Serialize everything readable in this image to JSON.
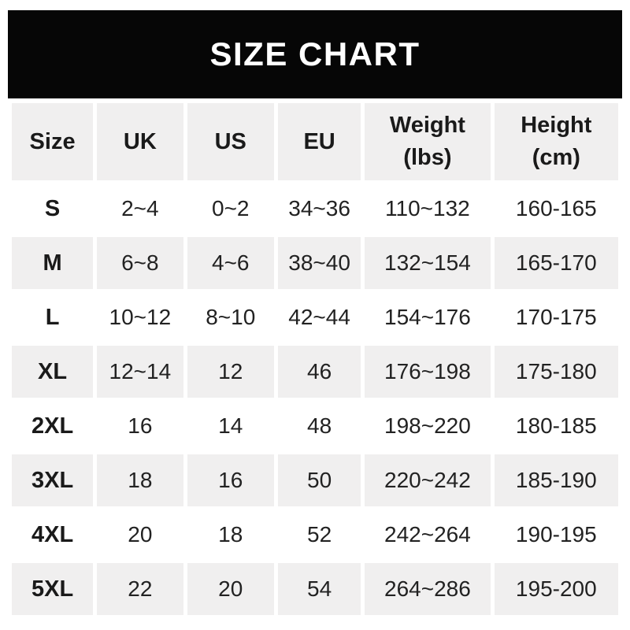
{
  "banner": {
    "title": "SIZE CHART"
  },
  "table": {
    "headers": [
      {
        "lines": [
          "Size"
        ]
      },
      {
        "lines": [
          "UK"
        ]
      },
      {
        "lines": [
          "US"
        ]
      },
      {
        "lines": [
          "EU"
        ]
      },
      {
        "lines": [
          "Weight",
          "(lbs)"
        ]
      },
      {
        "lines": [
          "Height",
          "(cm)"
        ]
      }
    ]
  },
  "colors": {
    "banner_bg": "#060606",
    "banner_fg": "#ffffff",
    "stripe": "#f0efef",
    "head_text": "#1a1a1a",
    "body_text": "#222222"
  },
  "chart_data": {
    "type": "table",
    "title": "SIZE CHART",
    "columns": [
      "Size",
      "UK",
      "US",
      "EU",
      "Weight (lbs)",
      "Height (cm)"
    ],
    "rows": [
      [
        "S",
        "2~4",
        "0~2",
        "34~36",
        "110~132",
        "160-165"
      ],
      [
        "M",
        "6~8",
        "4~6",
        "38~40",
        "132~154",
        "165-170"
      ],
      [
        "L",
        "10~12",
        "8~10",
        "42~44",
        "154~176",
        "170-175"
      ],
      [
        "XL",
        "12~14",
        "12",
        "46",
        "176~198",
        "175-180"
      ],
      [
        "2XL",
        "16",
        "14",
        "48",
        "198~220",
        "180-185"
      ],
      [
        "3XL",
        "18",
        "16",
        "50",
        "220~242",
        "185-190"
      ],
      [
        "4XL",
        "20",
        "18",
        "52",
        "242~264",
        "190-195"
      ],
      [
        "5XL",
        "22",
        "20",
        "54",
        "264~286",
        "195-200"
      ]
    ],
    "layout": {
      "row_striping": "alternating white and light gray, header gray",
      "grid": "thin white gutters between cells"
    }
  }
}
